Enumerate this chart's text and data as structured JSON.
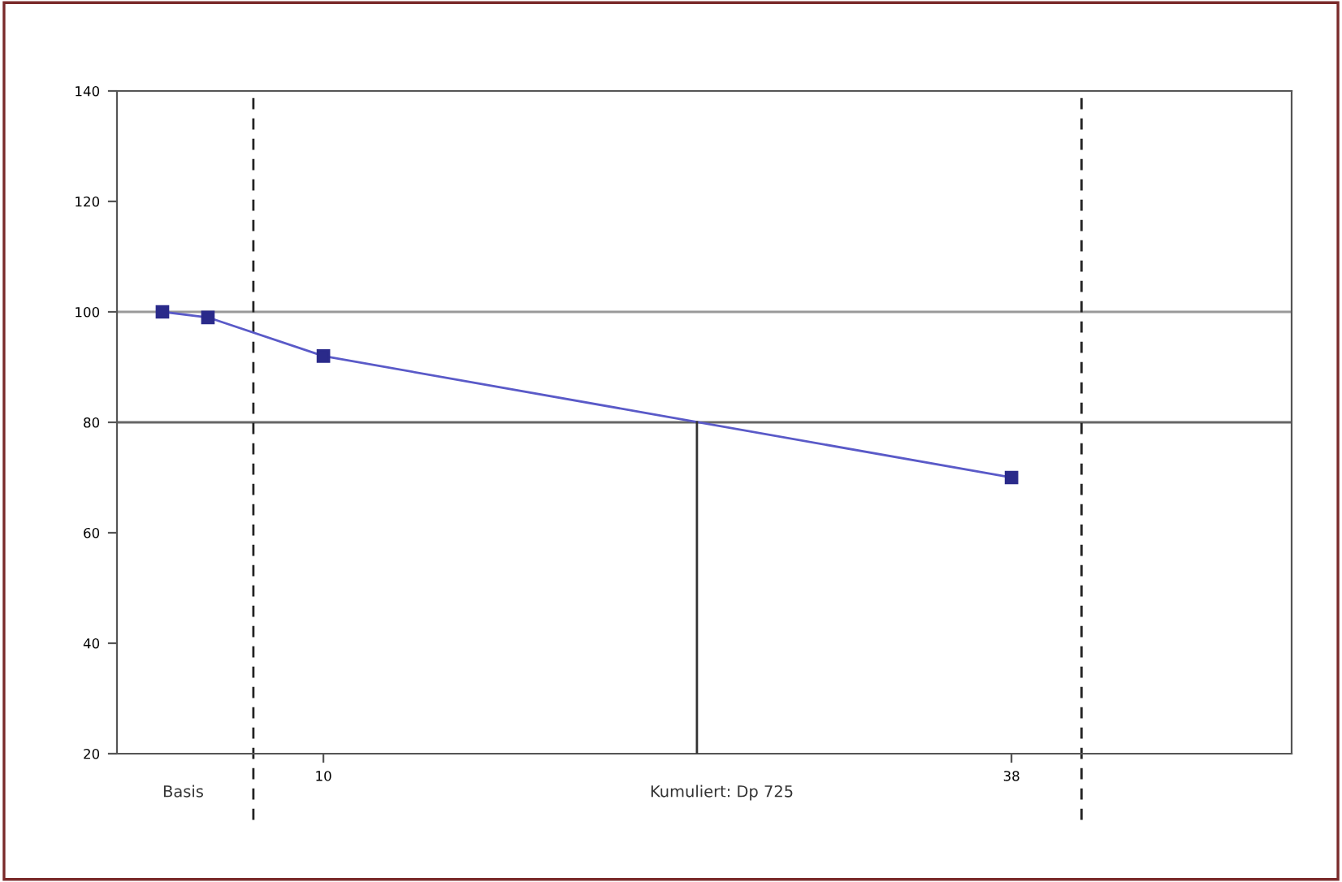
{
  "chart_data": {
    "type": "line",
    "x": [
      3.45,
      5.3,
      10,
      38
    ],
    "series": [
      {
        "color": "#5a5ac8",
        "values": [
          100,
          99,
          92,
          70
        ],
        "marker": "square"
      },
      {
        "type": "line",
        "x": [
          25.2,
          25.2
        ],
        "values": [
          20,
          80
        ],
        "color": "#333333",
        "marker": "none"
      }
    ],
    "xlim": [
      1.6,
      49.4
    ],
    "xticks": [
      10,
      38
    ],
    "ylim": [
      20,
      140
    ],
    "yticks": [
      20,
      40,
      60,
      80,
      100,
      120,
      140
    ],
    "grid": false,
    "ref_lines": [
      {
        "axis": "y",
        "value": 100,
        "color": "#999999",
        "line_style": "solid"
      },
      {
        "axis": "y",
        "value": 80,
        "color": "#666666",
        "line_style": "solid"
      },
      {
        "axis": "x",
        "value": 7.15,
        "color": "#222222",
        "line_style": "dashed"
      },
      {
        "axis": "x",
        "value": 40.85,
        "color": "#222222",
        "line_style": "dashed"
      }
    ],
    "annotations": [
      "Basis",
      "Kumuliert: Dp 725"
    ]
  }
}
